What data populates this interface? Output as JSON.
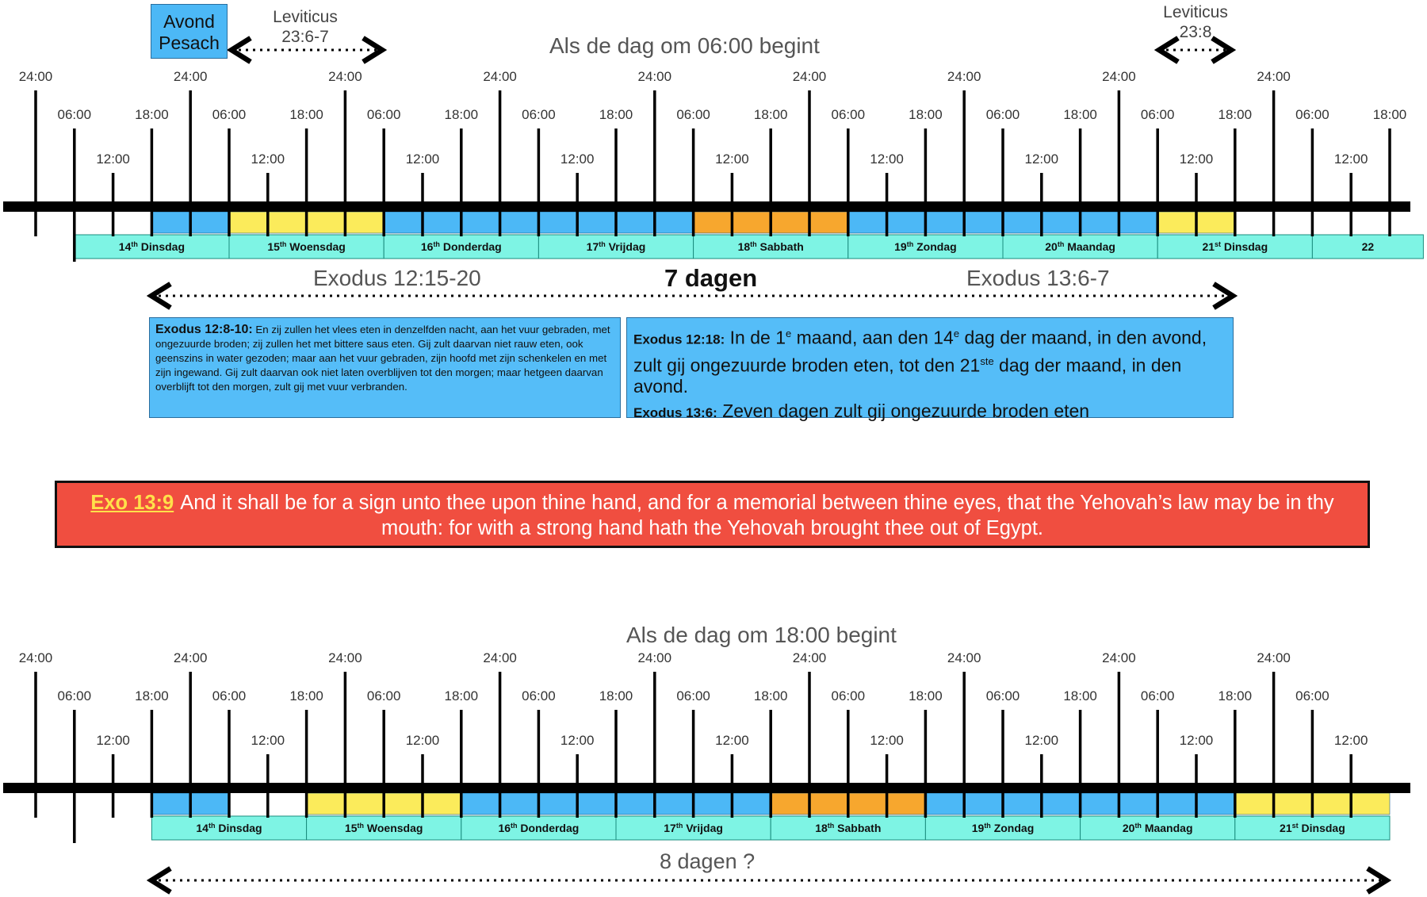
{
  "colors": {
    "blue": "#4cb8f6",
    "yellow": "#fbeb5b",
    "orange": "#f7a72e",
    "cyan": "#7ef4e4",
    "red": "#f04e40",
    "axis": "#000000"
  },
  "top": {
    "title": "Als de dag om 06:00 begint",
    "avond_pesach": [
      "Avond",
      "Pesach"
    ],
    "lev_left": [
      "Leviticus",
      "23:6-7"
    ],
    "lev_right": [
      "Leviticus",
      "23:8"
    ],
    "exodus_left": "Exodus 12:15-20",
    "seven_days": "7 dagen",
    "exodus_right": "Exodus 13:6-7",
    "day_start_hour": 6,
    "cells": [
      "white",
      "white",
      "white",
      "blue",
      "blue",
      "yellow",
      "yellow",
      "yellow",
      "yellow",
      "blue",
      "blue",
      "blue",
      "blue",
      "blue",
      "blue",
      "blue",
      "blue",
      "orange",
      "orange",
      "orange",
      "orange",
      "blue",
      "blue",
      "blue",
      "blue",
      "blue",
      "blue",
      "blue",
      "blue",
      "yellow",
      "yellow",
      "white",
      "white",
      "white",
      "white",
      "white"
    ],
    "days": [
      {
        "num": "14",
        "sup": "th",
        "name": "Dinsdag"
      },
      {
        "num": "15",
        "sup": "th",
        "name": "Woensdag"
      },
      {
        "num": "16",
        "sup": "th",
        "name": "Donderdag"
      },
      {
        "num": "17",
        "sup": "th",
        "name": "Vrijdag"
      },
      {
        "num": "18",
        "sup": "th",
        "name": "Sabbath"
      },
      {
        "num": "19",
        "sup": "th",
        "name": "Zondag"
      },
      {
        "num": "20",
        "sup": "th",
        "name": "Maandag"
      },
      {
        "num": "21",
        "sup": "st",
        "name": " Dinsdag"
      },
      {
        "num": "22",
        "sup": "",
        "name": ""
      }
    ]
  },
  "notes": {
    "left": {
      "ref": "Exodus 12:8-10:",
      "text": " En zij zullen het vlees eten in denzelfden nacht, aan het vuur gebraden, met ongezuurde broden; zij zullen het met bittere saus eten. Gij zult daarvan niet rauw eten, ook geenszins in water gezoden; maar aan het vuur gebraden, zijn hoofd met zijn schenkelen en met zijn ingewand. Gij zult daarvan ook niet laten overblijven tot den morgen; maar hetgeen daarvan overblijft tot den morgen, zult gij met vuur verbranden."
    },
    "right": {
      "ref1": "Exodus 12:18:",
      "text1a": " In de 1",
      "sup1": "e",
      "text1b": " maand, aan den 14",
      "sup2": "e",
      "text1c": " dag der maand, in den avond, zult gij ongezuurde broden eten, tot den 21",
      "sup3": "ste",
      "text1d": " dag der maand, in den avond.",
      "ref2": "Exodus 13:6:",
      "text2": " Zeven dagen zult gij ongezuurde broden eten"
    }
  },
  "banner": {
    "ref": "Exo 13:9",
    "text": "And it shall be for a sign unto thee upon thine hand, and for a memorial between thine eyes, that the Yehovah’s law may be in thy mouth: for with a strong hand hath the Yehovah brought thee out of Egypt."
  },
  "bottom": {
    "title": "Als de dag om 18:00 begint",
    "eight_days": "8 dagen ?",
    "day_start_hour": 18,
    "cells": [
      "white",
      "white",
      "white",
      "blue",
      "blue",
      "white",
      "white",
      "yellow",
      "yellow",
      "yellow",
      "yellow",
      "blue",
      "blue",
      "blue",
      "blue",
      "blue",
      "blue",
      "blue",
      "blue",
      "orange",
      "orange",
      "orange",
      "orange",
      "blue",
      "blue",
      "blue",
      "blue",
      "blue",
      "blue",
      "blue",
      "blue",
      "yellow",
      "yellow",
      "yellow",
      "yellow"
    ],
    "days": [
      {
        "num": "14",
        "sup": "th",
        "name": "Dinsdag"
      },
      {
        "num": "15",
        "sup": "th",
        "name": "Woensdag"
      },
      {
        "num": "16",
        "sup": "th",
        "name": "Donderdag"
      },
      {
        "num": "17",
        "sup": "th",
        "name": "Vrijdag"
      },
      {
        "num": "18",
        "sup": "th",
        "name": "Sabbath"
      },
      {
        "num": "19",
        "sup": "th",
        "name": "Zondag"
      },
      {
        "num": "20",
        "sup": "th",
        "name": "Maandag"
      },
      {
        "num": "21",
        "sup": "st",
        "name": " Dinsdag"
      }
    ]
  },
  "tick_labels": {
    "h0": "24:00",
    "h6": "06:00",
    "h12": "12:00",
    "h18": "18:00"
  }
}
